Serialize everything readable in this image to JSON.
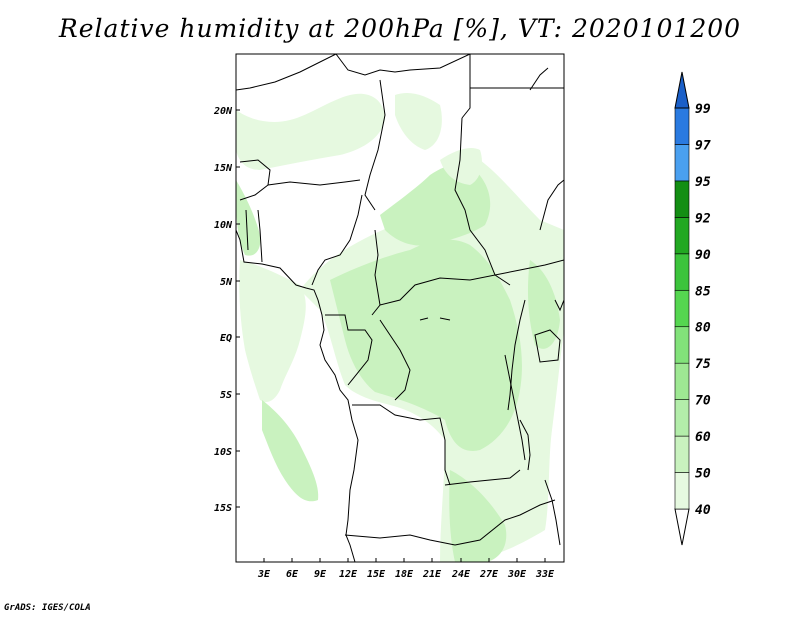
{
  "title": "Relative humidity at 200hPa [%], VT: 2020101200",
  "credit": "GrADS: IGES/COLA",
  "map": {
    "lat_ticks": [
      "20N",
      "15N",
      "10N",
      "5N",
      "EQ",
      "5S",
      "10S",
      "15S"
    ],
    "lon_ticks": [
      "3E",
      "6E",
      "9E",
      "12E",
      "15E",
      "18E",
      "21E",
      "24E",
      "27E",
      "30E",
      "33E"
    ]
  },
  "colorbar": {
    "labels": [
      "40",
      "50",
      "60",
      "70",
      "75",
      "80",
      "85",
      "90",
      "92",
      "95",
      "97",
      "99"
    ],
    "colors": [
      "#ffffff",
      "#e6f9e0",
      "#c9f2bf",
      "#b3edaa",
      "#9ee893",
      "#82e27a",
      "#55d650",
      "#3cc43c",
      "#22a822",
      "#138e13",
      "#4aa0f0",
      "#2a7ae0",
      "#1a5fc8"
    ]
  }
}
